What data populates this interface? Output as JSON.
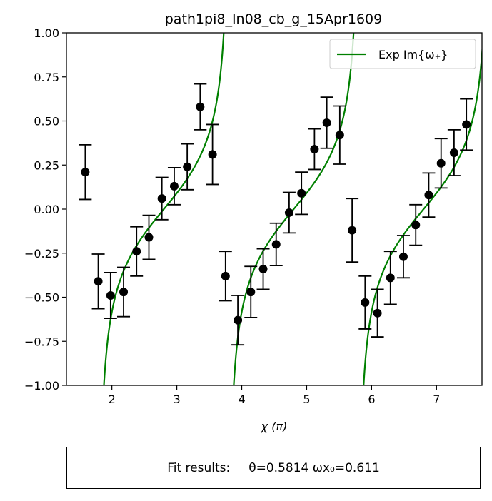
{
  "chart_data": {
    "type": "scatter",
    "title": "path1pi8_In08_cb_g_15Apr1609",
    "xlabel": "χ (π)",
    "ylabel": "",
    "xlim": [
      1.3,
      7.7
    ],
    "ylim": [
      -1.0,
      1.0
    ],
    "xticks": [
      2,
      3,
      4,
      5,
      6,
      7
    ],
    "yticks": [
      -1.0,
      -0.75,
      -0.5,
      -0.25,
      0.0,
      0.25,
      0.5,
      0.75,
      1.0
    ],
    "xtick_labels": [
      "2",
      "3",
      "4",
      "5",
      "6",
      "7"
    ],
    "ytick_labels": [
      "−1.00",
      "−0.75",
      "−0.50",
      "−0.25",
      "0.00",
      "0.25",
      "0.50",
      "0.75",
      "1.00"
    ],
    "grid": false,
    "legend": {
      "placement": "top-right",
      "entries": [
        {
          "label": "Exp Im{ω₊}",
          "color": "#008000"
        }
      ]
    },
    "series": [
      {
        "kind": "errorbar",
        "color": "#000000",
        "x": [
          1.59,
          1.79,
          1.98,
          2.18,
          2.38,
          2.57,
          2.77,
          2.96,
          3.16,
          3.36,
          3.55,
          3.75,
          3.94,
          4.14,
          4.33,
          4.53,
          4.73,
          4.92,
          5.12,
          5.31,
          5.51,
          5.7,
          5.9,
          6.09,
          6.29,
          6.49,
          6.68,
          6.88,
          7.07,
          7.27,
          7.46
        ],
        "y": [
          0.21,
          -0.41,
          -0.49,
          -0.47,
          -0.24,
          -0.16,
          0.06,
          0.13,
          0.24,
          0.58,
          0.31,
          -0.38,
          -0.63,
          -0.47,
          -0.34,
          -0.2,
          -0.02,
          0.09,
          0.34,
          0.49,
          0.42,
          -0.12,
          -0.53,
          -0.59,
          -0.39,
          -0.27,
          -0.09,
          0.08,
          0.26,
          0.32,
          0.48
        ],
        "yerr": [
          0.155,
          0.155,
          0.13,
          0.14,
          0.14,
          0.125,
          0.12,
          0.105,
          0.13,
          0.13,
          0.17,
          0.14,
          0.14,
          0.145,
          0.115,
          0.12,
          0.115,
          0.12,
          0.115,
          0.145,
          0.165,
          0.18,
          0.15,
          0.135,
          0.15,
          0.12,
          0.115,
          0.125,
          0.14,
          0.13,
          0.145
        ]
      },
      {
        "kind": "line",
        "name": "Exp Im{ω₊}",
        "color": "#008000",
        "model": {
          "theta": 0.5814,
          "omega_x0": 0.611,
          "period": 2
        }
      }
    ]
  },
  "fit_results": {
    "label": "Fit results:",
    "text": "θ=0.5814 ωx₀=0.611"
  }
}
